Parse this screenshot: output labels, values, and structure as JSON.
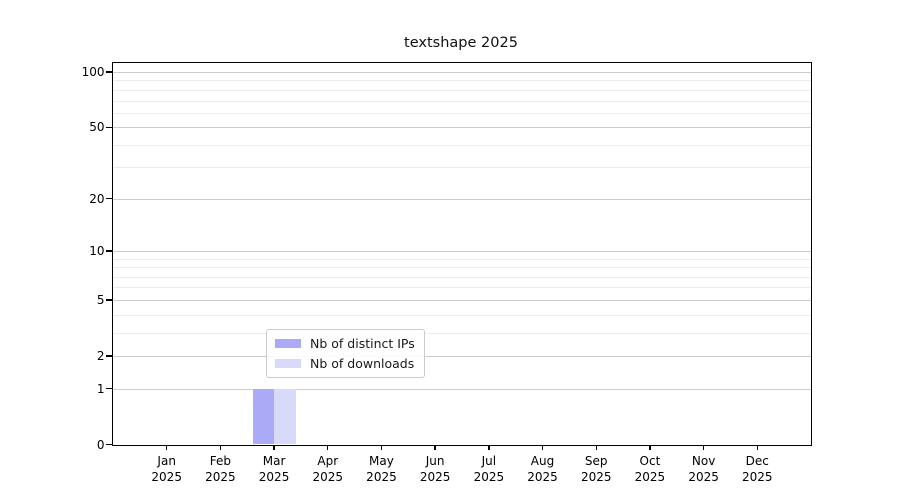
{
  "figure": {
    "title": "textshape 2025"
  },
  "chart_data": {
    "type": "bar",
    "title": "textshape 2025",
    "x_categories": [
      "Jan",
      "Feb",
      "Mar",
      "Apr",
      "May",
      "Jun",
      "Jul",
      "Aug",
      "Sep",
      "Oct",
      "Nov",
      "Dec"
    ],
    "x_year_label": "2025",
    "series": [
      {
        "name": "Nb of distinct IPs",
        "color": "#aaaaf6",
        "values": [
          0,
          0,
          1,
          0,
          0,
          0,
          0,
          0,
          0,
          0,
          0,
          0
        ]
      },
      {
        "name": "Nb of downloads",
        "color": "#d9d9fa",
        "values": [
          0,
          0,
          1,
          0,
          0,
          0,
          0,
          0,
          0,
          0,
          0,
          0
        ]
      }
    ],
    "yscale": "log1p",
    "ylim": [
      0,
      112
    ],
    "yticks_major": [
      0,
      1,
      2,
      5,
      10,
      20,
      50,
      100
    ],
    "yticks_minor": [
      3,
      4,
      6,
      7,
      8,
      9,
      30,
      40,
      60,
      70,
      80,
      90
    ],
    "grid": "horizontal",
    "legend_position": "lower center",
    "bar_width_fraction": 0.4
  },
  "colors": {
    "background": "#ffffff",
    "spine": "#000000",
    "grid_major": "#cccccc",
    "grid_minor": "#ededed",
    "text": "#000000",
    "bar_distinct_ips": "#aaaaf6",
    "bar_downloads": "#d9d9fa"
  }
}
